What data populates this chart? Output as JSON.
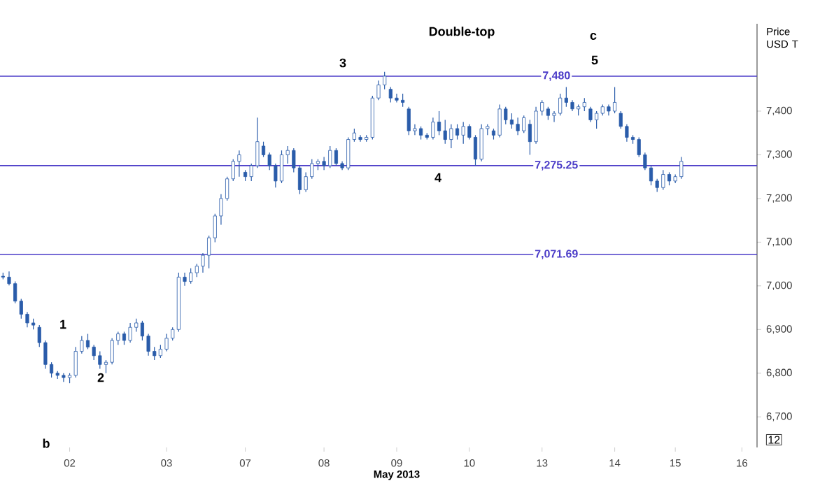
{
  "chart_data": {
    "type": "candlestick",
    "title": "Double-top",
    "xlabel": "May 2013",
    "ylabel": "Price USD T",
    "color": "#2a5caa",
    "categories": [
      null,
      null,
      null,
      null,
      null,
      null,
      null,
      null,
      null,
      null,
      null,
      "02",
      null,
      null,
      null,
      null,
      null,
      null,
      null,
      null,
      null,
      null,
      null,
      null,
      null,
      null,
      null,
      "03",
      null,
      null,
      null,
      null,
      null,
      null,
      null,
      null,
      null,
      null,
      null,
      null,
      "07",
      null,
      null,
      null,
      null,
      null,
      null,
      null,
      null,
      null,
      null,
      null,
      null,
      "08",
      null,
      null,
      null,
      null,
      null,
      null,
      null,
      null,
      null,
      null,
      null,
      "09",
      null,
      null,
      null,
      null,
      null,
      null,
      null,
      null,
      null,
      null,
      null,
      "10",
      null,
      null,
      null,
      null,
      null,
      null,
      null,
      null,
      null,
      null,
      null,
      "13",
      null,
      null,
      null,
      null,
      null,
      null,
      null,
      null,
      null,
      null,
      null,
      "14",
      null,
      null,
      null,
      null,
      null,
      null,
      null,
      null,
      null,
      "15",
      null,
      null,
      null,
      null,
      null,
      null,
      null,
      null,
      null,
      null,
      "16"
    ],
    "ohlc": [
      [
        7022,
        7030,
        7015,
        7020
      ],
      [
        7020,
        7033,
        7001,
        7005
      ],
      [
        7005,
        7010,
        6960,
        6965
      ],
      [
        6965,
        6970,
        6925,
        6935
      ],
      [
        6935,
        6940,
        6905,
        6915
      ],
      [
        6915,
        6925,
        6900,
        6910
      ],
      [
        6905,
        6910,
        6860,
        6870
      ],
      [
        6870,
        6875,
        6810,
        6820
      ],
      [
        6820,
        6825,
        6790,
        6800
      ],
      [
        6800,
        6805,
        6787,
        6795
      ],
      [
        6795,
        6800,
        6780,
        6790
      ],
      [
        6790,
        6800,
        6777,
        6795
      ],
      [
        6795,
        6860,
        6790,
        6850
      ],
      [
        6850,
        6885,
        6845,
        6875
      ],
      [
        6875,
        6890,
        6855,
        6860
      ],
      [
        6860,
        6865,
        6830,
        6840
      ],
      [
        6840,
        6850,
        6810,
        6820
      ],
      [
        6820,
        6830,
        6800,
        6825
      ],
      [
        6825,
        6880,
        6820,
        6875
      ],
      [
        6875,
        6895,
        6865,
        6890
      ],
      [
        6890,
        6895,
        6865,
        6875
      ],
      [
        6875,
        6915,
        6870,
        6905
      ],
      [
        6905,
        6925,
        6895,
        6915
      ],
      [
        6915,
        6920,
        6875,
        6885
      ],
      [
        6885,
        6890,
        6840,
        6850
      ],
      [
        6850,
        6860,
        6830,
        6840
      ],
      [
        6840,
        6865,
        6835,
        6855
      ],
      [
        6855,
        6890,
        6850,
        6880
      ],
      [
        6880,
        6905,
        6875,
        6900
      ],
      [
        6900,
        7030,
        6895,
        7020
      ],
      [
        7020,
        7030,
        7000,
        7010
      ],
      [
        7010,
        7040,
        7005,
        7030
      ],
      [
        7030,
        7050,
        7020,
        7045
      ],
      [
        7045,
        7075,
        7030,
        7070
      ],
      [
        7070,
        7115,
        7040,
        7110
      ],
      [
        7110,
        7165,
        7100,
        7160
      ],
      [
        7160,
        7210,
        7140,
        7200
      ],
      [
        7200,
        7250,
        7195,
        7245
      ],
      [
        7245,
        7290,
        7240,
        7285
      ],
      [
        7285,
        7310,
        7250,
        7300
      ],
      [
        7260,
        7265,
        7240,
        7250
      ],
      [
        7250,
        7280,
        7240,
        7275
      ],
      [
        7275,
        7385,
        7270,
        7330
      ],
      [
        7320,
        7330,
        7295,
        7300
      ],
      [
        7300,
        7305,
        7265,
        7275
      ],
      [
        7275,
        7280,
        7225,
        7240
      ],
      [
        7240,
        7310,
        7235,
        7300
      ],
      [
        7300,
        7320,
        7280,
        7310
      ],
      [
        7310,
        7315,
        7260,
        7270
      ],
      [
        7270,
        7275,
        7210,
        7220
      ],
      [
        7220,
        7260,
        7215,
        7250
      ],
      [
        7250,
        7290,
        7245,
        7280
      ],
      [
        7280,
        7290,
        7265,
        7285
      ],
      [
        7285,
        7295,
        7265,
        7275
      ],
      [
        7275,
        7320,
        7270,
        7310
      ],
      [
        7310,
        7315,
        7275,
        7280
      ],
      [
        7280,
        7285,
        7265,
        7270
      ],
      [
        7270,
        7340,
        7265,
        7335
      ],
      [
        7335,
        7360,
        7330,
        7350
      ],
      [
        7340,
        7345,
        7330,
        7335
      ],
      [
        7335,
        7345,
        7330,
        7340
      ],
      [
        7340,
        7435,
        7335,
        7430
      ],
      [
        7430,
        7470,
        7425,
        7460
      ],
      [
        7460,
        7490,
        7450,
        7480
      ],
      [
        7450,
        7455,
        7420,
        7430
      ],
      [
        7430,
        7440,
        7420,
        7425
      ],
      [
        7425,
        7440,
        7410,
        7420
      ],
      [
        7405,
        7410,
        7345,
        7355
      ],
      [
        7355,
        7370,
        7345,
        7360
      ],
      [
        7360,
        7365,
        7335,
        7345
      ],
      [
        7345,
        7350,
        7335,
        7340
      ],
      [
        7340,
        7385,
        7335,
        7375
      ],
      [
        7375,
        7400,
        7345,
        7355
      ],
      [
        7355,
        7380,
        7325,
        7335
      ],
      [
        7335,
        7370,
        7315,
        7360
      ],
      [
        7360,
        7370,
        7335,
        7345
      ],
      [
        7345,
        7375,
        7325,
        7365
      ],
      [
        7365,
        7370,
        7335,
        7340
      ],
      [
        7340,
        7345,
        7275,
        7290
      ],
      [
        7290,
        7370,
        7285,
        7360
      ],
      [
        7360,
        7370,
        7345,
        7365
      ],
      [
        7355,
        7360,
        7335,
        7345
      ],
      [
        7345,
        7415,
        7340,
        7405
      ],
      [
        7405,
        7410,
        7370,
        7380
      ],
      [
        7380,
        7395,
        7360,
        7370
      ],
      [
        7370,
        7385,
        7345,
        7355
      ],
      [
        7355,
        7390,
        7350,
        7385
      ],
      [
        7370,
        7380,
        7300,
        7330
      ],
      [
        7330,
        7410,
        7325,
        7400
      ],
      [
        7400,
        7425,
        7390,
        7420
      ],
      [
        7405,
        7410,
        7380,
        7390
      ],
      [
        7390,
        7400,
        7375,
        7395
      ],
      [
        7395,
        7440,
        7390,
        7430
      ],
      [
        7430,
        7455,
        7410,
        7420
      ],
      [
        7420,
        7425,
        7400,
        7405
      ],
      [
        7405,
        7415,
        7390,
        7410
      ],
      [
        7410,
        7430,
        7400,
        7420
      ],
      [
        7405,
        7410,
        7375,
        7380
      ],
      [
        7380,
        7400,
        7360,
        7395
      ],
      [
        7395,
        7415,
        7390,
        7410
      ],
      [
        7410,
        7415,
        7390,
        7400
      ],
      [
        7400,
        7455,
        7395,
        7420
      ],
      [
        7395,
        7400,
        7360,
        7365
      ],
      [
        7365,
        7370,
        7330,
        7340
      ],
      [
        7340,
        7345,
        7325,
        7335
      ],
      [
        7335,
        7340,
        7295,
        7300
      ],
      [
        7300,
        7305,
        7265,
        7270
      ],
      [
        7270,
        7275,
        7230,
        7240
      ],
      [
        7240,
        7245,
        7215,
        7225
      ],
      [
        7225,
        7265,
        7220,
        7255
      ],
      [
        7255,
        7260,
        7230,
        7240
      ],
      [
        7240,
        7255,
        7235,
        7250
      ],
      [
        7250,
        7295,
        7245,
        7285
      ],
      null,
      null,
      null,
      null,
      null,
      null,
      null,
      null,
      null,
      null
    ],
    "ylim": [
      6630,
      7600
    ],
    "yticks": [
      {
        "value": 6700,
        "label": "6,700"
      },
      {
        "value": 6800,
        "label": "6,800"
      },
      {
        "value": 6900,
        "label": "6,900"
      },
      {
        "value": 7000,
        "label": "7,000"
      },
      {
        "value": 7100,
        "label": "7,100"
      },
      {
        "value": 7200,
        "label": "7,200"
      },
      {
        "value": 7300,
        "label": "7,300"
      },
      {
        "value": 7400,
        "label": "7,400"
      }
    ],
    "ref_lines": [
      {
        "axis": "y",
        "value": 7480,
        "label": "7,480",
        "color": "#4b3cc8"
      },
      {
        "axis": "y",
        "value": 7275.25,
        "label": "7,275.25",
        "color": "#4b3cc8"
      },
      {
        "axis": "y",
        "value": 7071.69,
        "label": "7,071.69",
        "color": "#4b3cc8"
      }
    ],
    "annotations": [
      "1",
      "b",
      "2",
      "3",
      "4",
      "5",
      "c",
      "12"
    ]
  }
}
